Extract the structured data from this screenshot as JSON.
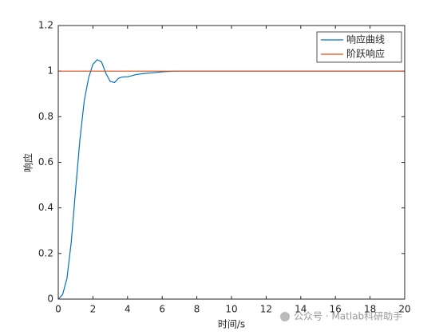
{
  "chart_data": {
    "type": "line",
    "xlabel": "时间/s",
    "ylabel": "响应",
    "watermark": "公众号 · Matlab科研助手",
    "series": [
      {
        "name": "响应曲线",
        "color": "#0072bd",
        "x": [
          0,
          0.25,
          0.5,
          0.75,
          1,
          1.25,
          1.5,
          1.75,
          2,
          2.25,
          2.5,
          2.75,
          3,
          3.25,
          3.5,
          3.75,
          4,
          4.5,
          5,
          5.5,
          6,
          6.5,
          7,
          8,
          10,
          12,
          15,
          20
        ],
        "values": [
          0,
          0.02,
          0.09,
          0.25,
          0.48,
          0.7,
          0.87,
          0.97,
          1.03,
          1.05,
          1.04,
          0.99,
          0.955,
          0.95,
          0.97,
          0.975,
          0.975,
          0.985,
          0.99,
          0.993,
          0.997,
          0.999,
          1,
          1,
          1,
          1,
          1,
          1
        ]
      },
      {
        "name": "阶跃响应",
        "color": "#d95319",
        "x": [
          0,
          20
        ],
        "values": [
          1,
          1
        ]
      }
    ],
    "xlim": [
      0,
      20
    ],
    "xticks": [
      0,
      2,
      4,
      6,
      8,
      10,
      12,
      14,
      16,
      18,
      20
    ],
    "ylim": [
      0,
      1.2
    ],
    "yticks": [
      0,
      0.2,
      0.4,
      0.6,
      0.8,
      1,
      1.2
    ],
    "legend": "top-right",
    "grid": false
  }
}
